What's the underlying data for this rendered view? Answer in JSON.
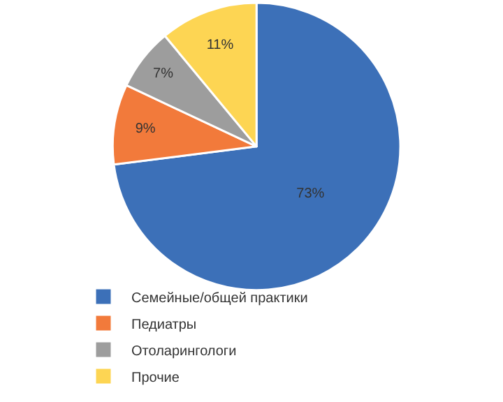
{
  "chart_data": {
    "type": "pie",
    "categories": [
      "Семейные/общей практики",
      "Педиатры",
      "Отоларингологи",
      "Прочие"
    ],
    "values": [
      73,
      9,
      7,
      11
    ],
    "colors": [
      "#3c70b8",
      "#f27a3b",
      "#9d9d9d",
      "#fdd553"
    ],
    "value_labels": [
      "73%",
      "9%",
      "7%",
      "11%"
    ],
    "legend": "bottom left"
  }
}
